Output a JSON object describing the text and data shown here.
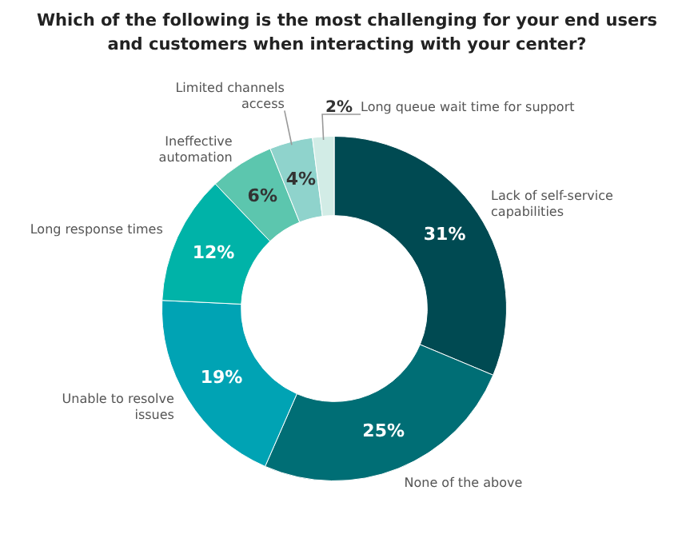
{
  "chart_data": {
    "type": "donut",
    "title": "Which of the following is the most challenging for your end users and customers when interacting with your center?",
    "categories": [
      "Lack of self-service capabilities",
      "None of the above",
      "Unable to resolve issues",
      "Long response times",
      "Ineffective automation",
      "Limited channels access",
      "Long queue wait time for support"
    ],
    "values": [
      31,
      25,
      19,
      12,
      6,
      4,
      2
    ],
    "colors": [
      "#004a52",
      "#006e75",
      "#00a3b4",
      "#00b3a8",
      "#5cc6ae",
      "#8fd3cc",
      "#d2ece6"
    ],
    "value_labels": [
      "31%",
      "25%",
      "19%",
      "12%",
      "6%",
      "4%",
      "2%"
    ],
    "data_labels": true,
    "legend": false
  }
}
